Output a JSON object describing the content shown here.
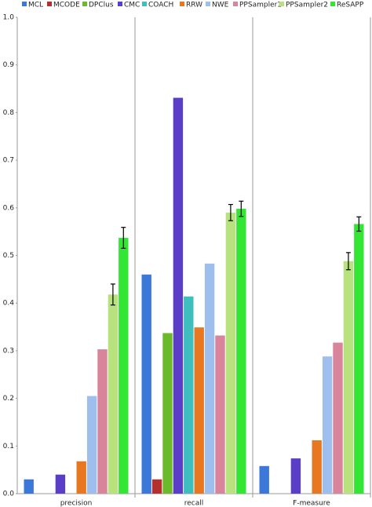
{
  "chart_data": {
    "type": "bar",
    "categories": [
      "precision",
      "recall",
      "F-measure"
    ],
    "series": [
      {
        "name": "MCL",
        "color": "#3b78d8",
        "values": [
          0.03,
          0.46,
          0.058
        ]
      },
      {
        "name": "MCODE",
        "color": "#b3302f",
        "values": [
          null,
          0.03,
          null
        ]
      },
      {
        "name": "DPClus",
        "color": "#6cba2a",
        "values": [
          null,
          0.337,
          null
        ]
      },
      {
        "name": "CMC",
        "color": "#5a3ec8",
        "values": [
          0.04,
          0.831,
          0.074
        ]
      },
      {
        "name": "COACH",
        "color": "#3fbebe",
        "values": [
          null,
          0.414,
          null
        ]
      },
      {
        "name": "RRW",
        "color": "#e87722",
        "values": [
          0.068,
          0.349,
          0.112
        ]
      },
      {
        "name": "NWE",
        "color": "#9ebfee",
        "values": [
          0.205,
          0.483,
          0.288
        ]
      },
      {
        "name": "PPSampler1",
        "color": "#d8849a",
        "values": [
          0.303,
          0.332,
          0.317
        ]
      },
      {
        "name": "PPSampler2",
        "color": "#b7e27e",
        "values": [
          0.418,
          0.59,
          0.488
        ],
        "errors": [
          0.022,
          0.017,
          0.018
        ]
      },
      {
        "name": "ReSAPP",
        "color": "#33e633",
        "values": [
          0.537,
          0.598,
          0.566
        ],
        "errors": [
          0.022,
          0.016,
          0.015
        ]
      }
    ],
    "ylim": [
      0,
      1
    ],
    "yticks": [
      {
        "value": 0,
        "label": "0.0"
      },
      0.1,
      0.2,
      0.3,
      0.4,
      0.5,
      0.6,
      0.7,
      0.8,
      0.9,
      {
        "value": 1,
        "label": "1.0"
      }
    ]
  }
}
